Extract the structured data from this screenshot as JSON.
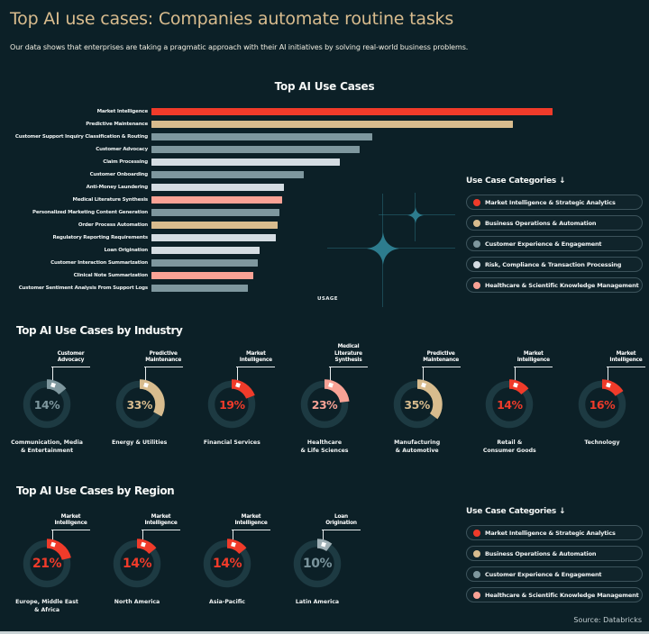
{
  "header": {
    "title": "Top AI use cases: Companies automate routine tasks",
    "subtitle": "Our data shows that enterprises are taking a pragmatic approach with their AI initiatives by solving real-world business problems."
  },
  "footer": {
    "source": "Source: Databricks"
  },
  "colors": {
    "background": "#0C2027",
    "title_gold": "#D9BC8E",
    "red": "#F03B2A",
    "tan": "#D8BC8E",
    "teal_gray": "#7E979E",
    "light_gray": "#D4DCE2",
    "salmon": "#F9A295",
    "steel": "#9FAFB5",
    "gray_text": "#7A949C",
    "ring_base": "#1D3A42",
    "sparkle": "#2D7C8E"
  },
  "legend_main": {
    "title": "Use Case Categories ↓",
    "items": [
      {
        "label": "Market Intelligence & Strategic Analytics",
        "color_key": "red"
      },
      {
        "label": "Business Operations & Automation",
        "color_key": "tan"
      },
      {
        "label": "Customer Experience & Engagement",
        "color_key": "teal_gray"
      },
      {
        "label": "Risk, Compliance & Transaction Processing",
        "color_key": "light_gray"
      },
      {
        "label": "Healthcare & Scientific Knowledge Management",
        "color_key": "salmon"
      }
    ]
  },
  "legend_region": {
    "title": "Use Case Categories ↓",
    "items": [
      {
        "label": "Market Intelligence & Strategic Analytics",
        "color_key": "red"
      },
      {
        "label": "Business Operations & Automation",
        "color_key": "tan"
      },
      {
        "label": "Customer Experience & Engagement",
        "color_key": "teal_gray"
      },
      {
        "label": "Healthcare & Scientific Knowledge Management",
        "color_key": "salmon"
      }
    ]
  },
  "chart_data": [
    {
      "type": "bar",
      "title": "Top AI Use Cases",
      "xlabel": "USAGE",
      "note": "horizontal bars; axis is unlabeled, values are relative usage with the longest bar = 100",
      "categories": [
        "Market Intelligence",
        "Predictive Maintenance",
        "Customer Support Inquiry Classification & Routing",
        "Customer Advocacy",
        "Claim Processing",
        "Customer Onboarding",
        "Anti-Money Laundering",
        "Medical Literature Synthesis",
        "Personalized Marketing Content Generation",
        "Order Process Automation",
        "Regulatory Reporting Requirements",
        "Loan Origination",
        "Customer Interaction Summarization",
        "Clinical Note Summarization",
        "Customer Sentiment Analysis From Support Logs"
      ],
      "values": [
        100,
        90,
        55,
        52,
        47,
        38,
        33,
        32.5,
        32,
        31.5,
        31,
        27,
        26.5,
        25.5,
        24
      ],
      "color_keys": [
        "red",
        "tan",
        "teal_gray",
        "teal_gray",
        "light_gray",
        "teal_gray",
        "light_gray",
        "salmon",
        "teal_gray",
        "tan",
        "light_gray",
        "light_gray",
        "teal_gray",
        "salmon",
        "teal_gray"
      ]
    },
    {
      "type": "donut-row",
      "title": "Top AI Use Cases by Industry",
      "items": [
        {
          "callout": "Customer\nAdvocacy",
          "pct": 14,
          "label": "Communication, Media\n& Entertainment",
          "color_key": "teal_gray",
          "pct_color_key": "teal_gray"
        },
        {
          "callout": "Predictive\nMaintenance",
          "pct": 33,
          "label": "Energy & Utilities",
          "color_key": "tan",
          "pct_color_key": "tan"
        },
        {
          "callout": "Market\nIntelligence",
          "pct": 19,
          "label": "Financial Services",
          "color_key": "red",
          "pct_color_key": "red"
        },
        {
          "callout": "Medical\nLiterature\nSynthesis",
          "pct": 23,
          "label": "Healthcare\n& Life Sciences",
          "color_key": "salmon",
          "pct_color_key": "salmon"
        },
        {
          "callout": "Predictive\nMaintenance",
          "pct": 35,
          "label": "Manufacturing\n& Automotive",
          "color_key": "tan",
          "pct_color_key": "tan"
        },
        {
          "callout": "Market\nIntelligence",
          "pct": 14,
          "label": "Retail &\nConsumer Goods",
          "color_key": "red",
          "pct_color_key": "red"
        },
        {
          "callout": "Market\nIntelligence",
          "pct": 16,
          "label": "Technology",
          "color_key": "red",
          "pct_color_key": "red"
        }
      ]
    },
    {
      "type": "donut-row",
      "title": "Top AI Use Cases by Region",
      "items": [
        {
          "callout": "Market\nIntelligence",
          "pct": 21,
          "label": "Europe, Middle East\n& Africa",
          "color_key": "red",
          "pct_color_key": "red"
        },
        {
          "callout": "Market\nIntelligence",
          "pct": 14,
          "label": "North America",
          "color_key": "red",
          "pct_color_key": "red"
        },
        {
          "callout": "Market\nIntelligence",
          "pct": 14,
          "label": "Asia-Pacific",
          "color_key": "red",
          "pct_color_key": "red"
        },
        {
          "callout": "Loan\nOrigination",
          "pct": 10,
          "label": "Latin America",
          "color_key": "steel",
          "pct_color_key": "gray_text"
        }
      ]
    }
  ]
}
